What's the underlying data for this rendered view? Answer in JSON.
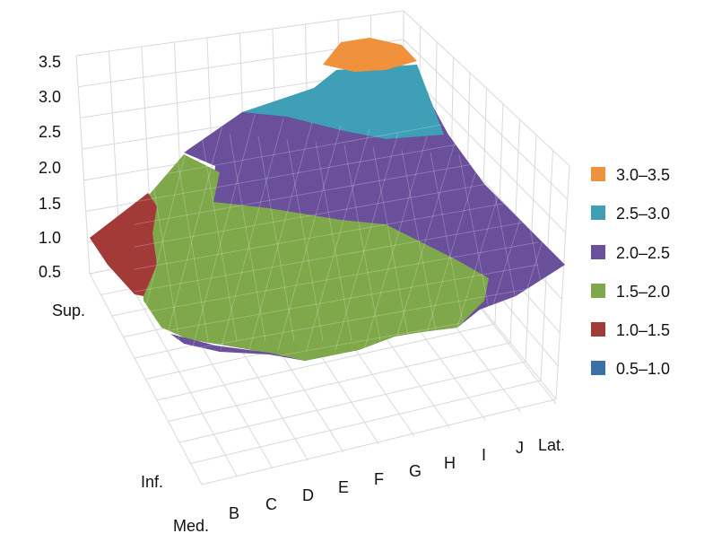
{
  "chart_data": {
    "type": "surface-3d",
    "title": "",
    "z_ticks": [
      "0.5",
      "1.0",
      "1.5",
      "2.0",
      "2.5",
      "3.0",
      "3.5"
    ],
    "zlim": [
      0.5,
      3.5
    ],
    "x_ticks": [
      "Med.",
      "B",
      "C",
      "D",
      "E",
      "F",
      "G",
      "H",
      "I",
      "J",
      "Lat."
    ],
    "y_ticks": [
      "Sup.",
      "Inf."
    ],
    "grid": true,
    "legend_position": "right",
    "legend": [
      {
        "label": "3.0–3.5",
        "color": "#f0913c"
      },
      {
        "label": "2.5–3.0",
        "color": "#3e9fb7"
      },
      {
        "label": "2.0–2.5",
        "color": "#6a4f9a"
      },
      {
        "label": "1.5–2.0",
        "color": "#7fa84a"
      },
      {
        "label": "1.0–1.5",
        "color": "#a23a38"
      },
      {
        "label": "0.5–1.0",
        "color": "#3b6fa8"
      }
    ],
    "bands": [
      {
        "range": "3.0–3.5",
        "color": "#f0913c"
      },
      {
        "range": "2.5–3.0",
        "color": "#3e9fb7"
      },
      {
        "range": "2.0–2.5",
        "color": "#6a4f9a"
      },
      {
        "range": "1.5–2.0",
        "color": "#7fa84a"
      },
      {
        "range": "1.0–1.5",
        "color": "#a23a38"
      }
    ]
  }
}
